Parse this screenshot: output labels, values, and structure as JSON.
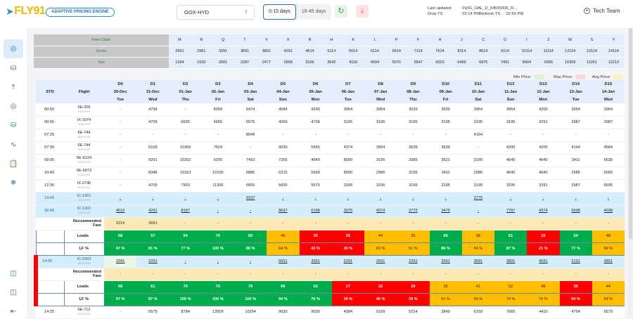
{
  "header": {
    "logo": "FLY91",
    "product": "ADAPTIVE PRICING ENGINE",
    "route": "GOX-HYD",
    "ranges": [
      "0-15 days",
      "16-45 days"
    ],
    "active_range": "0-15 days",
    "refresh_icon": "refresh-icon",
    "download_icon": "download-icon",
    "last_updated_label": "Last updated",
    "last_updated_value": ": Fly91_OAL_D_54555006_R...",
    "drop_ts_label": "Drop TS",
    "drop_ts_value": ": 02:14 PM",
    "refresh_ts_label": "Refresh TS",
    "refresh_ts_value": ": 02:50 PM",
    "user": "Tech Team"
  },
  "sidebar": {
    "items": [
      {
        "icon": "dashboard-icon",
        "active": true
      },
      {
        "icon": "database-settings-icon"
      },
      {
        "icon": "upload-icon"
      },
      {
        "icon": "target-icon"
      },
      {
        "icon": "database-icon"
      },
      {
        "icon": "trend-line-icon"
      },
      {
        "icon": "clipboard-clock-icon"
      },
      {
        "icon": "snowflake-icon"
      }
    ],
    "bottom_items": [
      {
        "icon": "panel-toggle-icon"
      },
      {
        "icon": "ticket-icon"
      },
      {
        "icon": "logout-icon"
      }
    ]
  },
  "fare_table": {
    "labels": [
      "Fare Class",
      "Gross",
      "Net"
    ],
    "classes": [
      "M",
      "N",
      "Q",
      "T",
      "V",
      "X",
      "B",
      "H",
      "K",
      "L",
      "P",
      "F",
      "A",
      "J",
      "C",
      "D",
      "I",
      "Z",
      "W",
      "S",
      "Y"
    ],
    "gross": [
      "2691",
      "2991",
      "3391",
      "3691",
      "3891",
      "4291",
      "4614",
      "5114",
      "5614",
      "6114",
      "6614",
      "7114",
      "7614",
      "8114",
      "8614",
      "9114",
      "10114",
      "11114",
      "12114",
      "13114",
      "14114"
    ],
    "net": [
      "1334",
      "1620",
      "2001",
      "2287",
      "2477",
      "2858",
      "3166",
      "3642",
      "4118",
      "4594",
      "5070",
      "5547",
      "6023",
      "6499",
      "6975",
      "7451",
      "8404",
      "9356",
      "10309",
      "11261",
      "12213"
    ]
  },
  "legend": {
    "min_label": "Min Price:",
    "min_color": "#dff3dc",
    "max_label": "Max Price:",
    "max_color": "#fbd9d9",
    "avg_label": "Avg Price:",
    "avg_color": "#fdf0c4"
  },
  "grid": {
    "std_label": "STD",
    "flight_label": "Flight",
    "days": [
      "D0",
      "D1",
      "D2",
      "D3",
      "D4",
      "D5",
      "D6",
      "D7",
      "D8",
      "D9",
      "D10",
      "D11",
      "D12",
      "D13",
      "D14",
      "D15"
    ],
    "dates": [
      "30-Dec",
      "31-Dec",
      "01-Jan",
      "02-Jan",
      "03-Jan",
      "04-Jan",
      "05-Jan",
      "06-Jan",
      "07-Jan",
      "08-Jan",
      "09-Jan",
      "10-Jan",
      "11-Jan",
      "12-Jan",
      "13-Jan",
      "14-Jan"
    ],
    "weekdays": [
      "Tue",
      "Wed",
      "Thu",
      "Fri",
      "Sat",
      "Sun",
      "Mon",
      "Tue",
      "Wed",
      "Thu",
      "Fri",
      "Sat",
      "Sun",
      "Mon",
      "Tue",
      "Wed"
    ],
    "rows": [
      {
        "type": "flight",
        "std": "00:50",
        "flight": "6E-206",
        "route": "GOX-HYD",
        "values": [
          "-",
          "4794",
          "-",
          "8259",
          "6474",
          "4584",
          "4200",
          "3954",
          "3954",
          "3639",
          "3639",
          "3954",
          "3954",
          "4200",
          "3954",
          "3954"
        ]
      },
      {
        "type": "flight",
        "std": "00:55",
        "flight": "IX-1074",
        "route": "GOX-HYD",
        "values": [
          "-",
          "4709",
          "6655",
          "6655",
          "5575",
          "4059",
          "4709",
          "3195",
          "3195",
          "3195",
          "3195",
          "3195",
          "3195",
          "3291",
          "2987",
          "2987"
        ]
      },
      {
        "type": "flight",
        "std": "07:25",
        "flight": "6E-744",
        "route": "GOX-HYD",
        "values": [
          "-",
          "-",
          "-",
          "-",
          "8049",
          "-",
          "-",
          "-",
          "-",
          "-",
          "-",
          "4164",
          "-",
          "-",
          "-",
          "-"
        ]
      },
      {
        "type": "flight",
        "std": "07:30",
        "flight": "6E-744",
        "route": "GOX-HYD",
        "values": [
          "-",
          "5109",
          "10359",
          "7524",
          "-",
          "9030",
          "5565",
          "4374",
          "3954",
          "3639",
          "3639",
          "-",
          "4200",
          "4200",
          "4164",
          "4584"
        ]
      },
      {
        "type": "flight",
        "std": "09:05",
        "flight": "6E-6124",
        "route": "GOX-HYD",
        "values": [
          "-",
          "9291",
          "10310",
          "9155",
          "7410",
          "7265",
          "4640",
          "8000",
          "3195",
          "2985",
          "3621",
          "3195",
          "4640",
          "4640",
          "3411",
          "6635"
        ]
      },
      {
        "type": "flight",
        "std": "10:40",
        "flight": "6E-6973",
        "route": "GOX-HYD",
        "values": [
          "-",
          "8346",
          "10310",
          "10100",
          "6885",
          "6215",
          "5690",
          "8000",
          "2985",
          "3195",
          "3411",
          "2985",
          "4640",
          "4640",
          "2985",
          "6005"
        ]
      },
      {
        "type": "flight",
        "std": "12:35",
        "flight": "IX-2746",
        "route": "GOX-HYD",
        "values": [
          "-",
          "4709",
          "7953",
          "11306",
          "6655",
          "6655",
          "5575",
          "3195",
          "3195",
          "3195",
          "3195",
          "3195",
          "3195",
          "3291",
          "2987",
          "6595"
        ]
      },
      {
        "type": "own",
        "std": "13:40",
        "flight": "IC-1301",
        "route": "GOX-HYD",
        "values": [
          "-",
          "-",
          "-",
          "-",
          "9197",
          "-",
          "-",
          "-",
          "-",
          "-",
          "-",
          "3775",
          "-",
          "-",
          "-",
          "-"
        ]
      },
      {
        "type": "own",
        "std": "16:45",
        "flight": "IC-1301",
        "route": "GOX-HYD",
        "values": [
          "4615",
          "4291",
          "8197",
          "-",
          "-",
          "8697",
          "6198",
          "3975",
          "4374",
          "3775",
          "3475",
          "-",
          "7797",
          "4374",
          "5698",
          "4698"
        ]
      },
      {
        "type": "rec",
        "label": "Recommended Fare",
        "values": [
          "5114",
          "3691",
          "-",
          "-",
          "-",
          "-",
          "-",
          "-",
          "-",
          "-",
          "-",
          "-",
          "-",
          "-",
          "-",
          "-"
        ]
      },
      {
        "type": "loads",
        "label": "Loads",
        "values": [
          "68",
          "57",
          "54",
          "70",
          "60",
          "45",
          "30",
          "25",
          "44",
          "36",
          "60",
          "38",
          "61",
          "15",
          "54",
          "48"
        ],
        "colors": [
          "g",
          "g",
          "g",
          "g",
          "g",
          "y",
          "r",
          "r",
          "y",
          "y",
          "g",
          "y",
          "g",
          "r",
          "g",
          "y"
        ]
      },
      {
        "type": "loads",
        "label": "LF %",
        "values": [
          "97 %",
          "81 %",
          "77 %",
          "100 %",
          "86 %",
          "64 %",
          "43 %",
          "36 %",
          "63 %",
          "51 %",
          "86 %",
          "54 %",
          "87 %",
          "21 %",
          "77 %",
          "69 %"
        ],
        "colors": [
          "g",
          "g",
          "g",
          "g",
          "g",
          "y",
          "r",
          "r",
          "y",
          "y",
          "g",
          "y",
          "g",
          "r",
          "g",
          "y"
        ]
      },
      {
        "type": "own",
        "marked": true,
        "std": "14:05",
        "flight": "IC-5303",
        "route": "SDW-HYD",
        "values": [
          "3391",
          "2291",
          "-",
          "-",
          "-",
          "6691",
          "3391",
          "2291",
          "2691",
          "2291",
          "2691",
          "3591",
          "3891",
          "4591",
          "2191",
          "3891"
        ]
      },
      {
        "type": "rec",
        "marked": true,
        "label": "Recommended Fare",
        "values": [
          "-",
          "-",
          "-",
          "-",
          "-",
          "-",
          "-",
          "-",
          "-",
          "-",
          "-",
          "-",
          "-",
          "-",
          "-",
          "-"
        ]
      },
      {
        "type": "loads",
        "marked": true,
        "label": "Loads",
        "values": [
          "68",
          "61",
          "70",
          "70",
          "70",
          "66",
          "53",
          "27",
          "32",
          "20",
          "36",
          "41",
          "52",
          "49",
          "35",
          "44"
        ],
        "colors": [
          "g",
          "g",
          "g",
          "g",
          "g",
          "g",
          "g",
          "r",
          "r",
          "r",
          "y",
          "y",
          "y",
          "y",
          "r",
          "y"
        ]
      },
      {
        "type": "loads",
        "marked": true,
        "label": "LF %",
        "values": [
          "97 %",
          "87 %",
          "100 %",
          "100 %",
          "100 %",
          "94 %",
          "76 %",
          "39 %",
          "46 %",
          "29 %",
          "51 %",
          "59 %",
          "74 %",
          "70 %",
          "50 %",
          "63 %"
        ],
        "colors": [
          "g",
          "g",
          "g",
          "g",
          "g",
          "g",
          "g",
          "r",
          "r",
          "r",
          "y",
          "y",
          "y",
          "y",
          "r",
          "y"
        ]
      },
      {
        "type": "flight",
        "std": "14:25",
        "flight": "6E-712",
        "route": "GOX-HYD",
        "values": [
          "-",
          "6579",
          "8784",
          "13509",
          "10254",
          "9030",
          "9030",
          "4584",
          "5109",
          "5214",
          "3849",
          "6159",
          "7665",
          "4410",
          "4794",
          "6579"
        ]
      }
    ]
  }
}
